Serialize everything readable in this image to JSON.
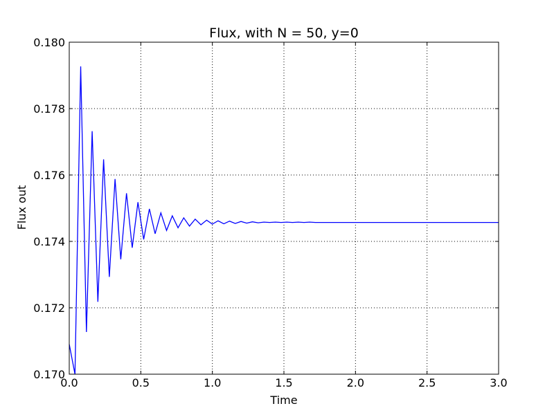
{
  "chart_data": {
    "type": "line",
    "title": "Flux, with N = 50, y=0",
    "xlabel": "Time",
    "ylabel": "Flux out",
    "xlim": [
      0.0,
      3.0
    ],
    "ylim": [
      0.17,
      0.18
    ],
    "grid": true,
    "legend": "none",
    "x_ticks": [
      "0.0",
      "0.5",
      "1.0",
      "1.5",
      "2.0",
      "2.5",
      "3.0"
    ],
    "y_ticks": [
      "0.170",
      "0.172",
      "0.174",
      "0.176",
      "0.178",
      "0.180"
    ],
    "colors": {
      "line": "#0000ff",
      "grid": "#000000",
      "axes": "#000000"
    },
    "series": [
      {
        "x": [
          0.0,
          0.04,
          0.08,
          0.12,
          0.16,
          0.2,
          0.24,
          0.28,
          0.32,
          0.36,
          0.4,
          0.44,
          0.48,
          0.52,
          0.56,
          0.6,
          0.64,
          0.68,
          0.72,
          0.76,
          0.8,
          0.84,
          0.88,
          0.92,
          0.96,
          1.0,
          1.04,
          1.08,
          1.12,
          1.16,
          1.2,
          1.24,
          1.28,
          1.32,
          1.36,
          1.4,
          1.44,
          1.48,
          1.52,
          1.56,
          1.6,
          1.64,
          1.68,
          1.72,
          1.8,
          2.0,
          2.5,
          3.0
        ],
        "y": [
          0.1709,
          0.17,
          0.17927,
          0.17127,
          0.17732,
          0.17218,
          0.17647,
          0.17293,
          0.17588,
          0.17346,
          0.17545,
          0.17381,
          0.17518,
          0.17406,
          0.17498,
          0.17423,
          0.17486,
          0.17433,
          0.17477,
          0.17441,
          0.17471,
          0.17446,
          0.17467,
          0.1745,
          0.17464,
          0.17452,
          0.17462,
          0.17453,
          0.17461,
          0.17454,
          0.1746,
          0.17455,
          0.17459,
          0.17456,
          0.17458,
          0.17457,
          0.17458,
          0.17457,
          0.17458,
          0.17457,
          0.17458,
          0.17457,
          0.17458,
          0.17457,
          0.17457,
          0.17457,
          0.17457,
          0.17457
        ]
      }
    ]
  }
}
